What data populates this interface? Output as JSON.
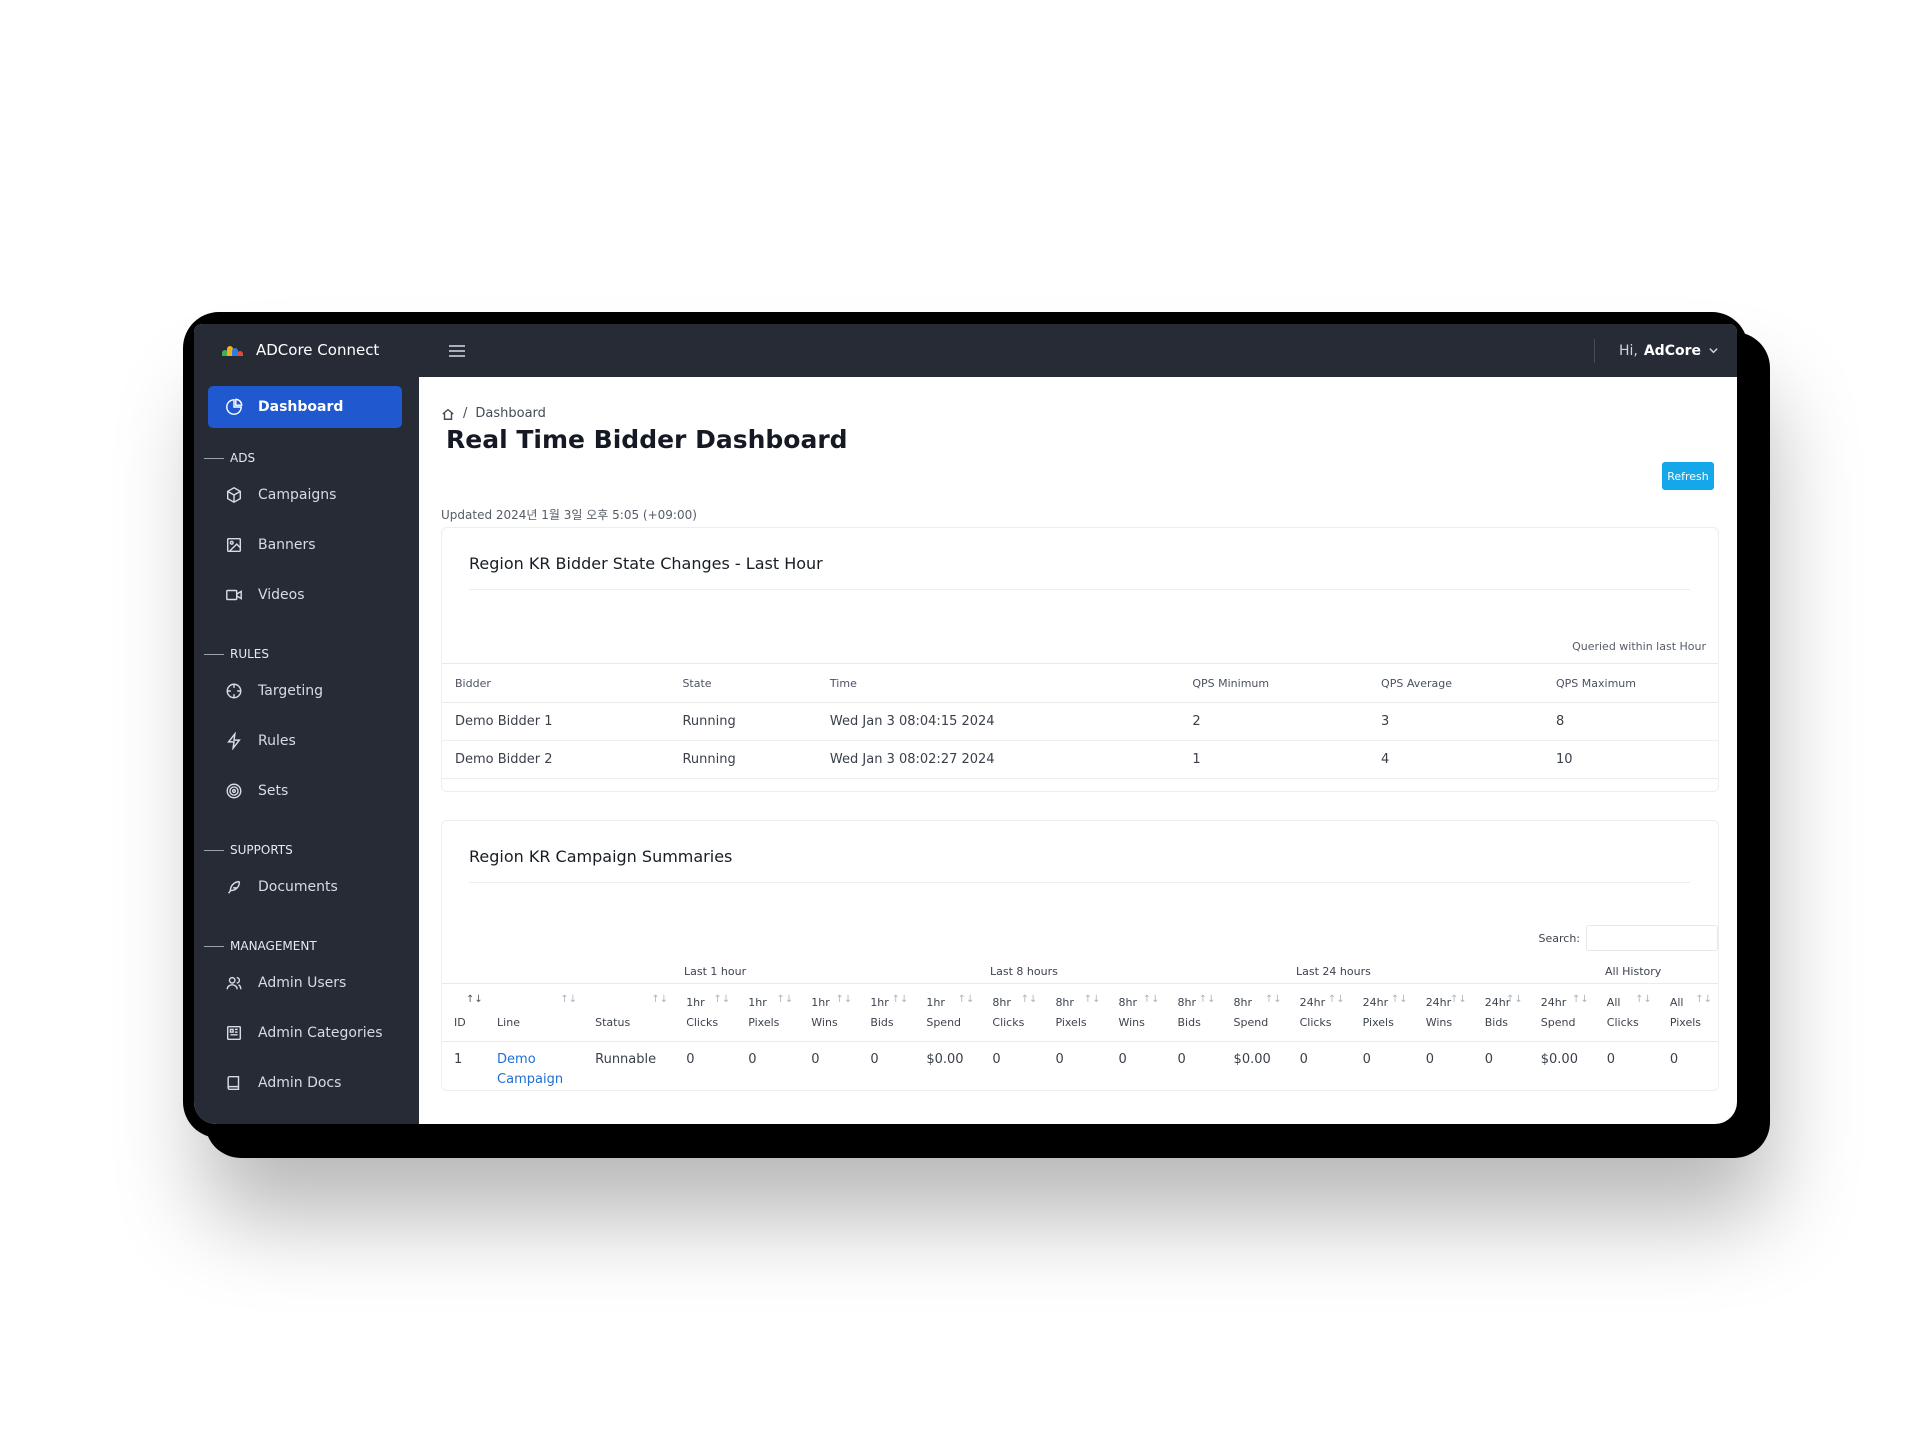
{
  "app": {
    "name": "ADCore Connect"
  },
  "sidebar": {
    "active": {
      "label": "Dashboard"
    },
    "sections": [
      {
        "label": "ADS",
        "items": [
          {
            "label": "Campaigns",
            "icon": "cube-icon"
          },
          {
            "label": "Banners",
            "icon": "image-icon"
          },
          {
            "label": "Videos",
            "icon": "video-icon"
          }
        ]
      },
      {
        "label": "RULES",
        "items": [
          {
            "label": "Targeting",
            "icon": "crosshair-icon"
          },
          {
            "label": "Rules",
            "icon": "bolt-icon"
          },
          {
            "label": "Sets",
            "icon": "target-icon"
          }
        ]
      },
      {
        "label": "SUPPORTS",
        "items": [
          {
            "label": "Documents",
            "icon": "feather-icon"
          }
        ]
      },
      {
        "label": "MANAGEMENT",
        "items": [
          {
            "label": "Admin Users",
            "icon": "users-icon"
          },
          {
            "label": "Admin Categories",
            "icon": "category-icon"
          },
          {
            "label": "Admin Docs",
            "icon": "book-icon"
          }
        ]
      }
    ]
  },
  "topbar": {
    "greeting": "Hi,",
    "username": "AdCore"
  },
  "breadcrumb": {
    "separator": "/",
    "current": "Dashboard"
  },
  "page": {
    "title": "Real Time Bidder Dashboard",
    "refresh_label": "Refresh",
    "updated": "Updated 2024년 1월 3일 오후 5:05 (+09:00)"
  },
  "bidder_card": {
    "title": "Region KR Bidder State Changes - Last Hour",
    "queried": "Queried within last Hour",
    "columns": [
      "Bidder",
      "State",
      "Time",
      "QPS Minimum",
      "QPS Average",
      "QPS Maximum"
    ],
    "rows": [
      [
        "Demo Bidder 1",
        "Running",
        "Wed Jan 3 08:04:15 2024",
        "2",
        "3",
        "8"
      ],
      [
        "Demo Bidder 2",
        "Running",
        "Wed Jan 3 08:02:27 2024",
        "1",
        "4",
        "10"
      ]
    ]
  },
  "campaign_card": {
    "title": "Region KR Campaign Summaries",
    "search_label": "Search:",
    "search_value": "",
    "groups": [
      "Last 1 hour",
      "Last 8 hours",
      "Last 24 hours",
      "All History"
    ],
    "columns": [
      [
        "",
        "ID"
      ],
      [
        "",
        "Line"
      ],
      [
        "",
        "Status"
      ],
      [
        "1hr",
        "Clicks"
      ],
      [
        "1hr",
        "Pixels"
      ],
      [
        "1hr",
        "Wins"
      ],
      [
        "1hr",
        "Bids"
      ],
      [
        "1hr",
        "Spend"
      ],
      [
        "8hr",
        "Clicks"
      ],
      [
        "8hr",
        "Pixels"
      ],
      [
        "8hr",
        "Wins"
      ],
      [
        "8hr",
        "Bids"
      ],
      [
        "8hr",
        "Spend"
      ],
      [
        "24hr",
        "Clicks"
      ],
      [
        "24hr",
        "Pixels"
      ],
      [
        "24hr",
        "Wins"
      ],
      [
        "24hr",
        "Bids"
      ],
      [
        "24hr",
        "Spend"
      ],
      [
        "All",
        "Clicks"
      ],
      [
        "All",
        "Pixels"
      ]
    ],
    "rows": [
      [
        "1",
        "Demo Campaign",
        "Runnable",
        "0",
        "0",
        "0",
        "0",
        "$0.00",
        "0",
        "0",
        "0",
        "0",
        "$0.00",
        "0",
        "0",
        "0",
        "0",
        "$0.00",
        "0",
        "0"
      ]
    ]
  },
  "colors": {
    "sidebar": "#262b36",
    "active": "#1f58cf",
    "refresh": "#14a8ea",
    "running": "#22b04a",
    "link": "#1f6fd6"
  }
}
